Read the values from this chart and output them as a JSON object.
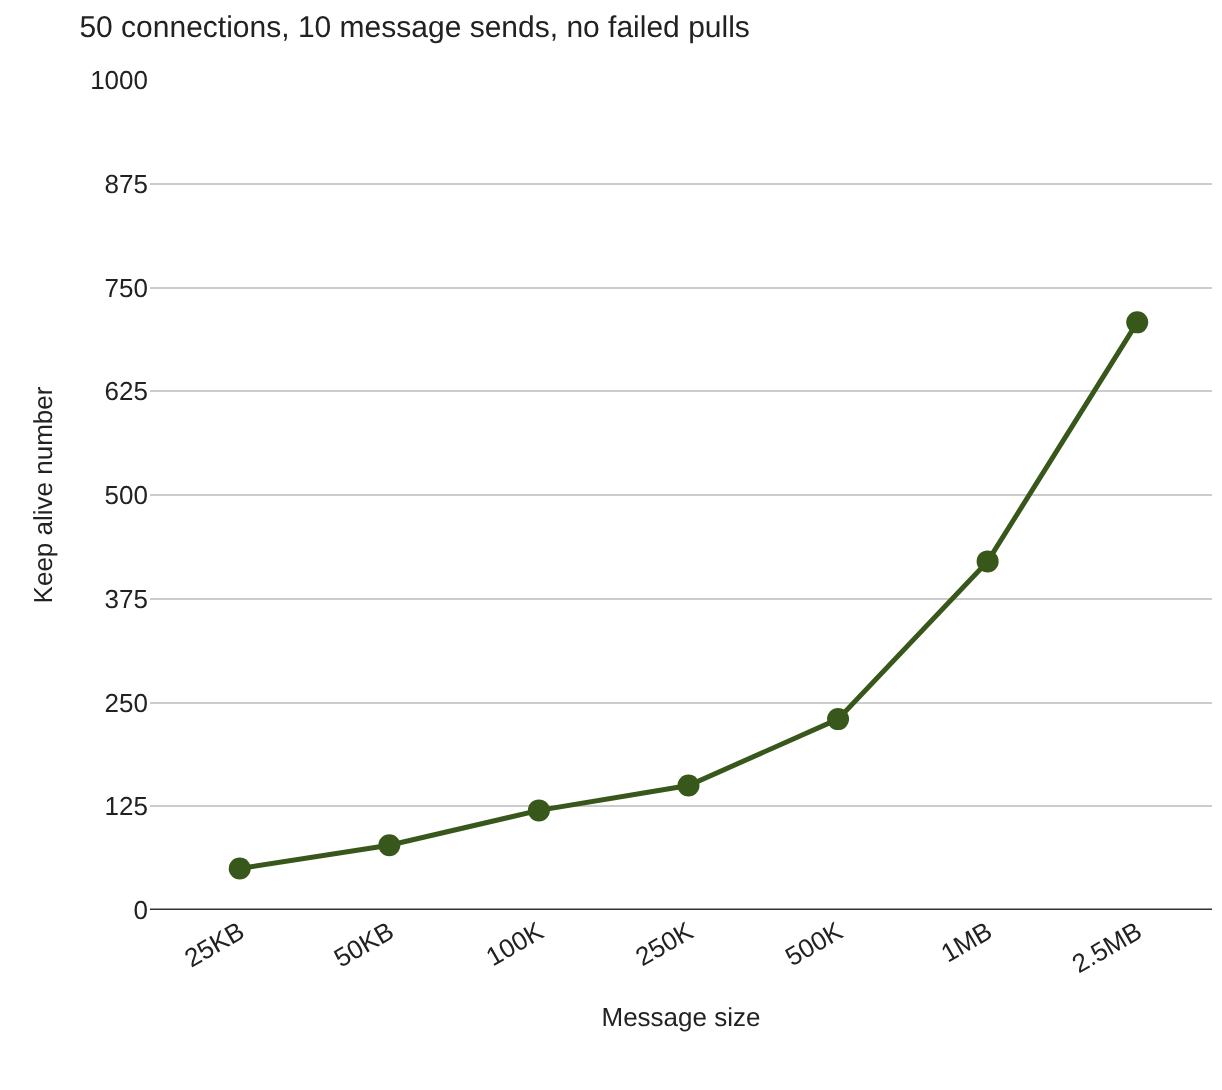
{
  "chart_data": {
    "type": "line",
    "title": "50 connections, 10 message sends, no failed pulls",
    "xlabel": "Message size",
    "ylabel": "Keep alive number",
    "categories": [
      "25KB",
      "50KB",
      "100K",
      "250K",
      "500K",
      "1MB",
      "2.5MB"
    ],
    "series": [
      {
        "color": "#38571a",
        "values": [
          50,
          78,
          120,
          150,
          230,
          420,
          708
        ]
      }
    ],
    "ylim": [
      0,
      1000
    ],
    "yticks": [
      0,
      125,
      250,
      375,
      500,
      625,
      750,
      875,
      1000
    ],
    "grid": "y",
    "marker": "circle",
    "line_style": "solid",
    "legend": false
  }
}
